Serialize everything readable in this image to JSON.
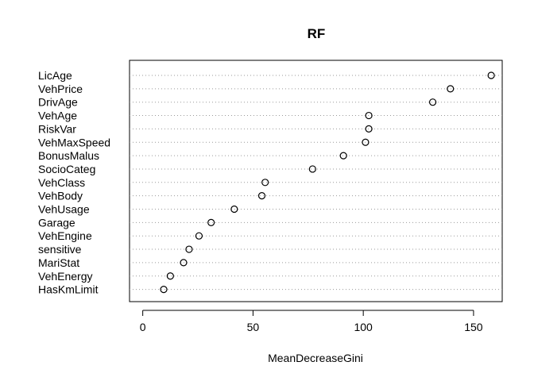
{
  "chart_data": {
    "type": "scatter",
    "title": "RF",
    "xlabel": "MeanDecreaseGini",
    "ylabel": "",
    "xlim": [
      -6,
      163
    ],
    "xticks": [
      0,
      50,
      100,
      150
    ],
    "grid": "dotted horizontal",
    "point_style": "open-circle",
    "categories": [
      "LicAge",
      "VehPrice",
      "DrivAge",
      "VehAge",
      "RiskVar",
      "VehMaxSpeed",
      "BonusMalus",
      "SocioCateg",
      "VehClass",
      "VehBody",
      "VehUsage",
      "Garage",
      "VehEngine",
      "sensitive",
      "MariStat",
      "VehEnergy",
      "HasKmLimit"
    ],
    "values": [
      158,
      139.5,
      131.5,
      102.5,
      102.5,
      101,
      91,
      77,
      55.5,
      54,
      41.5,
      31,
      25.5,
      21,
      18.5,
      12.5,
      9.5
    ]
  }
}
